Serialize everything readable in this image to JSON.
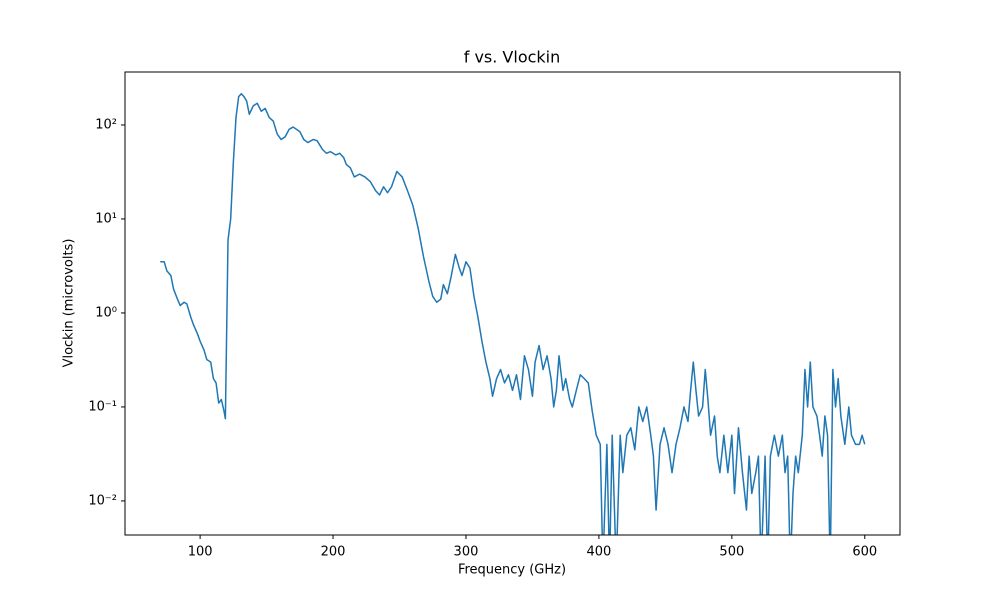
{
  "chart_data": {
    "type": "line",
    "title": "f vs. Vlockin",
    "x_label": "Frequency (GHz)",
    "y_label": "Vlockin (microvolts)",
    "yscale": "log",
    "xlim": [
      43.5,
      626.5
    ],
    "ylim": [
      0.00434,
      366
    ],
    "xticks": [
      100,
      200,
      300,
      400,
      500,
      600
    ],
    "yticks": [
      {
        "value": 0.01,
        "label": "10⁻²"
      },
      {
        "value": 0.1,
        "label": "10⁻¹"
      },
      {
        "value": 1,
        "label": "10⁰"
      },
      {
        "value": 10,
        "label": "10¹"
      },
      {
        "value": 100,
        "label": "10²"
      }
    ],
    "series": [
      {
        "color": "#1f77b4",
        "x": [
          70,
          73,
          75,
          78,
          80,
          83,
          85,
          88,
          90,
          93,
          95,
          98,
          100,
          103,
          105,
          108,
          110,
          112,
          114,
          116,
          118,
          119,
          121,
          123,
          125,
          127,
          129,
          131,
          133,
          135,
          137,
          140,
          143,
          146,
          149,
          152,
          155,
          158,
          161,
          164,
          167,
          170,
          175,
          178,
          181,
          185,
          188,
          192,
          195,
          198,
          202,
          205,
          208,
          210,
          213,
          216,
          220,
          224,
          228,
          232,
          235,
          238,
          241,
          244,
          248,
          252,
          256,
          260,
          264,
          268,
          272,
          275,
          278,
          281,
          283,
          286,
          289,
          292,
          295,
          297,
          300,
          303,
          306,
          309,
          312,
          315,
          318,
          320,
          323,
          326,
          329,
          332,
          335,
          338,
          341,
          344,
          347,
          350,
          352,
          355,
          358,
          361,
          364,
          366,
          368,
          370,
          373,
          375,
          378,
          380,
          383,
          386,
          389,
          392,
          395,
          398,
          401,
          403,
          406,
          408,
          410,
          413,
          416,
          418,
          421,
          424,
          427,
          430,
          433,
          436,
          439,
          441,
          443,
          446,
          449,
          452,
          455,
          458,
          461,
          464,
          467,
          469,
          471,
          473,
          475,
          478,
          480,
          482,
          484,
          487,
          489,
          491,
          494,
          497,
          500,
          502,
          505,
          508,
          511,
          513,
          515,
          518,
          520,
          522,
          525,
          527,
          529,
          532,
          535,
          538,
          540,
          542,
          544,
          546,
          548,
          550,
          553,
          555,
          557,
          559,
          561,
          564,
          566,
          568,
          570,
          572,
          574,
          576,
          578,
          580,
          582,
          585,
          588,
          590,
          593,
          596,
          598,
          600
        ],
        "values": [
          3.5,
          3.5,
          2.8,
          2.5,
          1.8,
          1.4,
          1.2,
          1.3,
          1.25,
          0.9,
          0.75,
          0.6,
          0.5,
          0.4,
          0.32,
          0.3,
          0.2,
          0.18,
          0.11,
          0.12,
          0.09,
          0.075,
          6,
          10,
          40,
          120,
          200,
          215,
          200,
          180,
          130,
          160,
          170,
          140,
          150,
          120,
          110,
          80,
          70,
          75,
          90,
          95,
          85,
          70,
          65,
          70,
          68,
          55,
          50,
          52,
          48,
          50,
          45,
          38,
          35,
          28,
          30,
          28,
          25,
          20,
          18,
          22,
          19,
          22,
          32,
          28,
          20,
          14,
          8,
          4,
          2.2,
          1.5,
          1.3,
          1.4,
          2,
          1.6,
          2.5,
          4.2,
          3,
          2.5,
          3.5,
          3,
          1.5,
          0.9,
          0.5,
          0.3,
          0.2,
          0.13,
          0.2,
          0.25,
          0.18,
          0.22,
          0.15,
          0.22,
          0.12,
          0.35,
          0.25,
          0.13,
          0.3,
          0.45,
          0.25,
          0.35,
          0.2,
          0.1,
          0.15,
          0.35,
          0.15,
          0.2,
          0.12,
          0.1,
          0.15,
          0.22,
          0.2,
          0.18,
          0.09,
          0.05,
          0.04,
          0.002,
          0.04,
          0.002,
          0.05,
          0.002,
          0.05,
          0.02,
          0.05,
          0.06,
          0.035,
          0.1,
          0.07,
          0.1,
          0.05,
          0.03,
          0.008,
          0.04,
          0.06,
          0.04,
          0.02,
          0.04,
          0.06,
          0.1,
          0.07,
          0.15,
          0.3,
          0.15,
          0.08,
          0.1,
          0.25,
          0.12,
          0.05,
          0.08,
          0.03,
          0.02,
          0.05,
          0.02,
          0.05,
          0.012,
          0.06,
          0.02,
          0.008,
          0.03,
          0.012,
          0.02,
          0.03,
          0.002,
          0.03,
          0.002,
          0.03,
          0.05,
          0.03,
          0.05,
          0.02,
          0.03,
          0.002,
          0.012,
          0.03,
          0.02,
          0.05,
          0.25,
          0.1,
          0.3,
          0.1,
          0.08,
          0.05,
          0.03,
          0.08,
          0.05,
          0.002,
          0.25,
          0.1,
          0.2,
          0.08,
          0.04,
          0.1,
          0.05,
          0.04,
          0.04,
          0.05,
          0.04
        ]
      }
    ]
  }
}
